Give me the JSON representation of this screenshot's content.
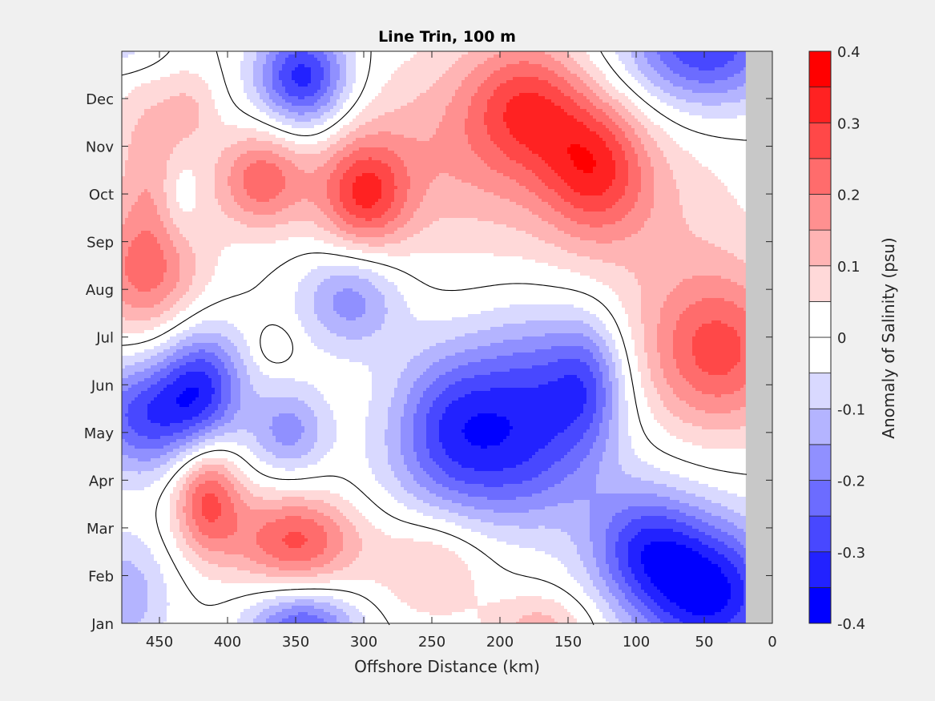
{
  "chart_data": {
    "type": "heatmap",
    "subtype": "filled-contour",
    "title": "Line Trin, 100 m",
    "xlabel": "Offshore Distance (km)",
    "ylabel": "",
    "xlim": [
      478,
      0
    ],
    "x_reversed": true,
    "xticks": [
      450,
      400,
      350,
      300,
      250,
      200,
      150,
      100,
      50,
      0
    ],
    "xtick_labels": [
      "450",
      "400",
      "350",
      "300",
      "250",
      "200",
      "150",
      "100",
      "50",
      "0"
    ],
    "ylim": [
      0,
      12
    ],
    "yticks": [
      0,
      1,
      2,
      3,
      4,
      5,
      6,
      7,
      8,
      9,
      10,
      11
    ],
    "ytick_labels": [
      "Jan",
      "Feb",
      "Mar",
      "Apr",
      "May",
      "Jun",
      "Jul",
      "Aug",
      "Sep",
      "Oct",
      "Nov",
      "Dec"
    ],
    "no_data_region_km": [
      0,
      19.5
    ],
    "no_data_color": "#c8c8c8",
    "zero_contour_color": "#000000",
    "colorbar": {
      "label": "Anomaly of Salinity (psu)",
      "clim": [
        -0.4,
        0.4
      ],
      "levels": [
        -0.4,
        -0.35,
        -0.3,
        -0.25,
        -0.2,
        -0.15,
        -0.1,
        -0.05,
        0,
        0.05,
        0.1,
        0.15,
        0.2,
        0.25,
        0.3,
        0.35,
        0.4
      ],
      "tick_values": [
        -0.4,
        -0.3,
        -0.2,
        -0.1,
        0,
        0.1,
        0.2,
        0.3,
        0.4
      ],
      "tick_labels": [
        "-0.4",
        "-0.3",
        "-0.2",
        "-0.1",
        "0",
        "0.1",
        "0.2",
        "0.3",
        "0.4"
      ],
      "colors": [
        "#0000ff",
        "#2222ff",
        "#4848ff",
        "#6c6cff",
        "#9090ff",
        "#b4b4ff",
        "#d9d9ff",
        "#ffffff",
        "#ffffff",
        "#ffd9d9",
        "#ffb4b4",
        "#ff9090",
        "#ff6c6c",
        "#ff4848",
        "#ff2222",
        "#ff0000"
      ]
    },
    "features": [
      {
        "km": 345,
        "month": 11.45,
        "value": -0.33,
        "spread_km": 24,
        "spread_month": 0.75
      },
      {
        "km": 460,
        "month": 4.35,
        "value": -0.27,
        "spread_km": 32,
        "spread_month": 0.85
      },
      {
        "km": 418,
        "month": 5.0,
        "value": -0.26,
        "spread_km": 22,
        "spread_month": 0.9
      },
      {
        "km": 355,
        "month": 4.05,
        "value": -0.17,
        "spread_km": 20,
        "spread_month": 0.65
      },
      {
        "km": 310,
        "month": 6.8,
        "value": -0.18,
        "spread_km": 26,
        "spread_month": 0.75
      },
      {
        "km": 235,
        "month": 4.3,
        "value": -0.25,
        "spread_km": 32,
        "spread_month": 1.1
      },
      {
        "km": 175,
        "month": 4.6,
        "value": -0.24,
        "spread_km": 32,
        "spread_month": 1.3
      },
      {
        "km": 135,
        "month": 5.0,
        "value": -0.19,
        "spread_km": 20,
        "spread_month": 1.0
      },
      {
        "km": 205,
        "month": 3.0,
        "value": -0.12,
        "spread_km": 55,
        "spread_month": 0.9
      },
      {
        "km": 45,
        "month": 0.6,
        "value": -0.36,
        "spread_km": 38,
        "spread_month": 1.1
      },
      {
        "km": 95,
        "month": 1.6,
        "value": -0.24,
        "spread_km": 30,
        "spread_month": 0.9
      },
      {
        "km": 345,
        "month": -0.1,
        "value": -0.26,
        "spread_km": 28,
        "spread_month": 0.55
      },
      {
        "km": 50,
        "month": 12.1,
        "value": -0.3,
        "spread_km": 42,
        "spread_month": 0.9
      },
      {
        "km": 435,
        "month": 8.95,
        "value": -0.08,
        "spread_km": 11,
        "spread_month": 0.7
      },
      {
        "km": 478,
        "month": 0.6,
        "value": -0.14,
        "spread_km": 25,
        "spread_month": 0.9
      },
      {
        "km": 470,
        "month": 12.0,
        "value": -0.08,
        "spread_km": 20,
        "spread_month": 0.4
      },
      {
        "km": 460,
        "month": 7.35,
        "value": 0.21,
        "spread_km": 30,
        "spread_month": 1.0
      },
      {
        "km": 455,
        "month": 9.8,
        "value": 0.13,
        "spread_km": 22,
        "spread_month": 1.3
      },
      {
        "km": 375,
        "month": 9.3,
        "value": 0.23,
        "spread_km": 24,
        "spread_month": 0.75
      },
      {
        "km": 300,
        "month": 9.0,
        "value": 0.27,
        "spread_km": 24,
        "spread_month": 0.85
      },
      {
        "km": 180,
        "month": 10.9,
        "value": 0.22,
        "spread_km": 32,
        "spread_month": 1.0
      },
      {
        "km": 130,
        "month": 9.6,
        "value": 0.23,
        "spread_km": 28,
        "spread_month": 1.0
      },
      {
        "km": 230,
        "month": 9.9,
        "value": 0.13,
        "spread_km": 60,
        "spread_month": 1.5
      },
      {
        "km": 100,
        "month": 8.6,
        "value": 0.09,
        "spread_km": 60,
        "spread_month": 1.4
      },
      {
        "km": 40,
        "month": 5.7,
        "value": 0.27,
        "spread_km": 40,
        "spread_month": 1.2
      },
      {
        "km": 415,
        "month": 2.65,
        "value": 0.26,
        "spread_km": 18,
        "spread_month": 0.85
      },
      {
        "km": 350,
        "month": 1.75,
        "value": 0.26,
        "spread_km": 34,
        "spread_month": 0.7
      },
      {
        "km": 250,
        "month": 1.2,
        "value": 0.11,
        "spread_km": 28,
        "spread_month": 0.8
      },
      {
        "km": 170,
        "month": -0.05,
        "value": 0.12,
        "spread_km": 28,
        "spread_month": 0.5
      },
      {
        "km": 425,
        "month": 10.8,
        "value": 0.07,
        "spread_km": 14,
        "spread_month": 0.6
      },
      {
        "km": 365,
        "month": 5.8,
        "value": 0.06,
        "spread_km": 10,
        "spread_month": 0.3
      }
    ]
  }
}
